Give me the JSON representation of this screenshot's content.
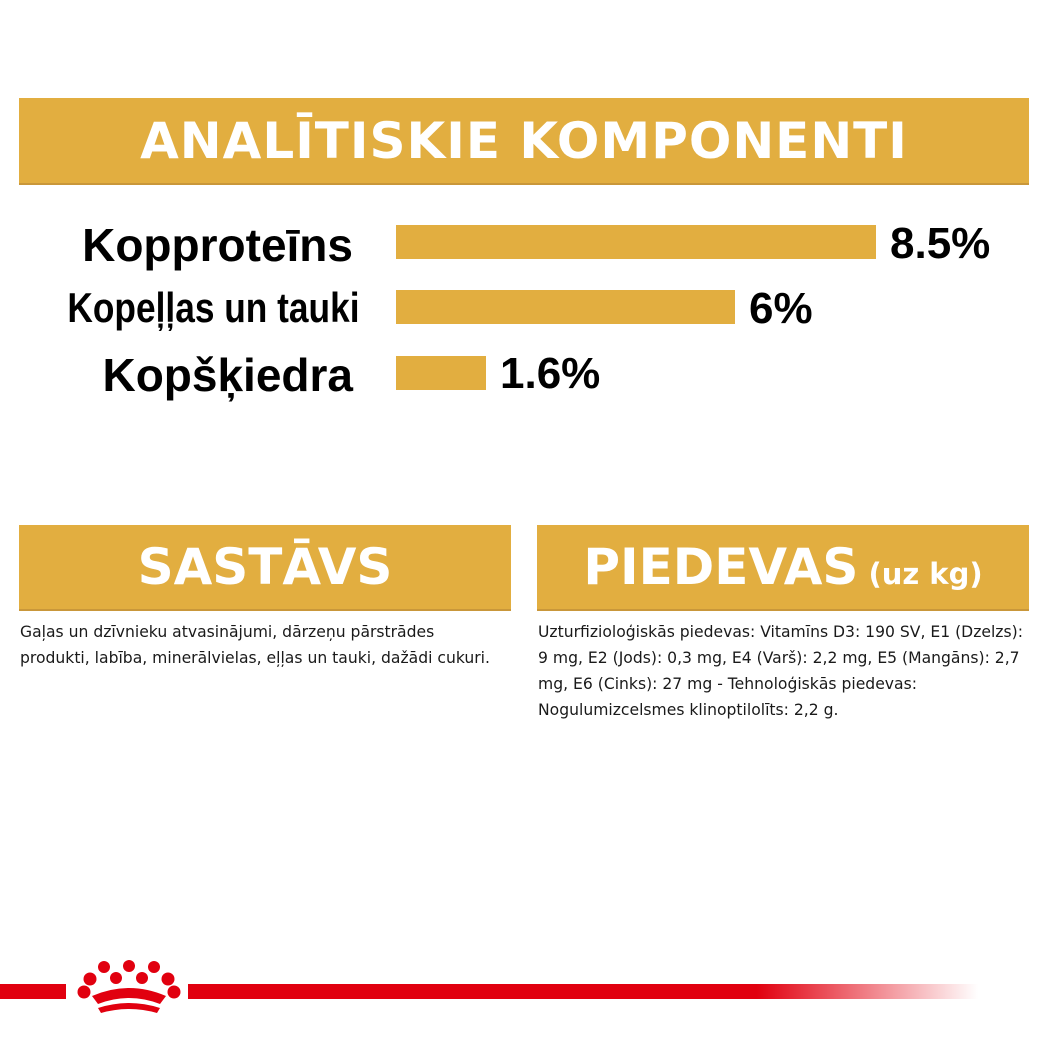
{
  "title": "ANALĪTISKIE KOMPONENTI",
  "components": [
    {
      "label": "Kopproteīns",
      "value": "8.5%",
      "percent": 8.5
    },
    {
      "label": "Kopeļļas un tauki",
      "value": "6%",
      "percent": 6
    },
    {
      "label": "Kopšķiedra",
      "value": "1.6%",
      "percent": 1.6
    }
  ],
  "composition": {
    "title": "SASTĀVS",
    "text": "Gaļas un dzīvnieku atvasinājumi, dārzeņu pārstrādes produkti, labība, minerālvielas, eļļas un tauki, dažādi cukuri."
  },
  "additives": {
    "title": "PIEDEVAS",
    "unit": "(uz kg)",
    "text": "Uzturfizioloģiskās piedevas: Vitamīns D3: 190 SV, E1 (Dzelzs): 9 mg, E2 (Jods): 0,3 mg, E4 (Varš): 2,2 mg, E5 (Mangāns): 2,7 mg, E6 (Cinks): 27 mg - Tehnoloģiskās piedevas: Nogulumizcelsmes klinoptilolīts: 2,2 g."
  },
  "colors": {
    "accent": "#e2ae40",
    "brand_red": "#e1000f"
  },
  "logo_icon": "crown-icon"
}
